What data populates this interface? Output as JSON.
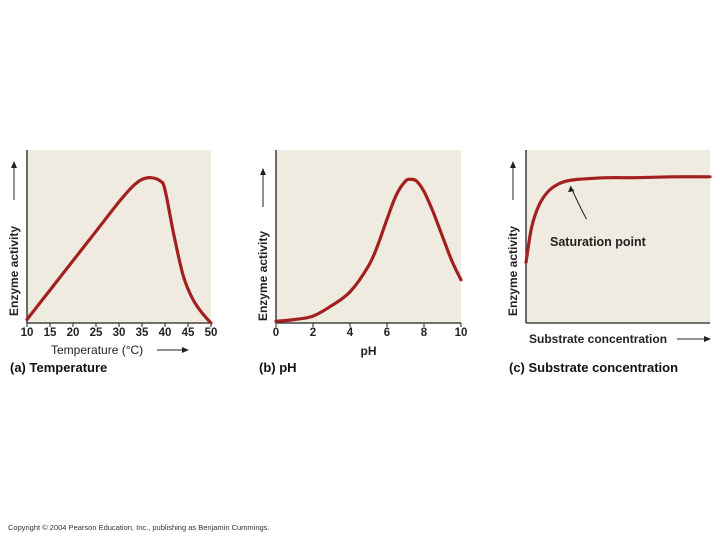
{
  "colors": {
    "panel_bg": "#f0ebe1",
    "curve": "#a32020",
    "axis": "#222222"
  },
  "copyright": "Copyright © 2004 Pearson Education, Inc., publishing as Benjamin Cummings.",
  "chart_data": [
    {
      "type": "line",
      "caption": "(a) Temperature",
      "xlabel": "Temperature (°C)",
      "ylabel": "Enzyme activity",
      "xlim": [
        10,
        50
      ],
      "ylim": [
        0,
        1
      ],
      "xticks": [
        "10",
        "15",
        "20",
        "25",
        "30",
        "35",
        "40",
        "45",
        "50"
      ],
      "x": [
        10,
        15,
        20,
        25,
        30,
        33,
        35,
        37,
        39,
        40,
        42,
        44,
        46,
        48,
        50
      ],
      "y": [
        0.02,
        0.19,
        0.36,
        0.53,
        0.7,
        0.79,
        0.83,
        0.84,
        0.82,
        0.77,
        0.5,
        0.27,
        0.14,
        0.06,
        0.0
      ]
    },
    {
      "type": "line",
      "caption": "(b) pH",
      "xlabel": "pH",
      "ylabel": "Enzyme activity",
      "xlim": [
        0,
        10
      ],
      "ylim": [
        0,
        1
      ],
      "xticks": [
        "0",
        "2",
        "4",
        "6",
        "8",
        "10"
      ],
      "x": [
        0,
        1,
        2,
        3,
        4,
        5,
        5.5,
        6,
        6.5,
        7,
        7.3,
        7.6,
        8,
        8.5,
        9,
        9.5,
        10
      ],
      "y": [
        0.01,
        0.02,
        0.04,
        0.1,
        0.18,
        0.33,
        0.45,
        0.6,
        0.74,
        0.82,
        0.83,
        0.82,
        0.76,
        0.64,
        0.5,
        0.36,
        0.25
      ]
    },
    {
      "type": "line",
      "caption": "(c) Substrate concentration",
      "xlabel": "Substrate concentration",
      "ylabel": "Enzyme activity",
      "annotation": "Saturation point",
      "xlim": [
        0,
        1
      ],
      "ylim": [
        0,
        1
      ],
      "xticks": [],
      "x": [
        0,
        0.03,
        0.07,
        0.12,
        0.17,
        0.22,
        0.28,
        0.35,
        0.45,
        0.6,
        0.8,
        1.0
      ],
      "y": [
        0.35,
        0.55,
        0.68,
        0.76,
        0.8,
        0.82,
        0.83,
        0.835,
        0.84,
        0.84,
        0.845,
        0.845
      ]
    }
  ]
}
